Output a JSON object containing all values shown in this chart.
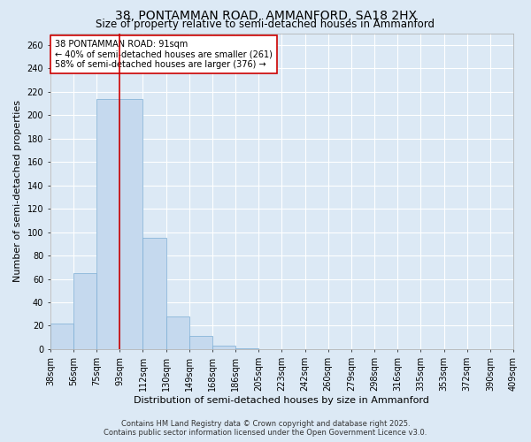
{
  "title": "38, PONTAMMAN ROAD, AMMANFORD, SA18 2HX",
  "subtitle": "Size of property relative to semi-detached houses in Ammanford",
  "xlabel": "Distribution of semi-detached houses by size in Ammanford",
  "ylabel": "Number of semi-detached properties",
  "tick_labels": [
    "38sqm",
    "56sqm",
    "75sqm",
    "93sqm",
    "112sqm",
    "130sqm",
    "149sqm",
    "168sqm",
    "186sqm",
    "205sqm",
    "223sqm",
    "242sqm",
    "260sqm",
    "279sqm",
    "298sqm",
    "316sqm",
    "335sqm",
    "353sqm",
    "372sqm",
    "390sqm",
    "409sqm"
  ],
  "bar_values": [
    22,
    65,
    214,
    214,
    95,
    28,
    11,
    3,
    1,
    0,
    0,
    0,
    0,
    0,
    0,
    0,
    0,
    0,
    0,
    0
  ],
  "bar_color": "#c5d9ee",
  "bar_edge_color": "#7aadd4",
  "vline_position": 3.0,
  "vline_color": "#cc0000",
  "annotation_text": "38 PONTAMMAN ROAD: 91sqm\n← 40% of semi-detached houses are smaller (261)\n58% of semi-detached houses are larger (376) →",
  "annotation_box_facecolor": "#ffffff",
  "annotation_box_edgecolor": "#cc0000",
  "ylim": [
    0,
    270
  ],
  "yticks": [
    0,
    20,
    40,
    60,
    80,
    100,
    120,
    140,
    160,
    180,
    200,
    220,
    240,
    260
  ],
  "background_color": "#dce9f5",
  "footer_line1": "Contains HM Land Registry data © Crown copyright and database right 2025.",
  "footer_line2": "Contains public sector information licensed under the Open Government Licence v3.0.",
  "title_fontsize": 10,
  "subtitle_fontsize": 8.5,
  "ylabel_fontsize": 8,
  "xlabel_fontsize": 8,
  "tick_fontsize": 7,
  "annotation_fontsize": 7,
  "footer_fontsize": 6
}
